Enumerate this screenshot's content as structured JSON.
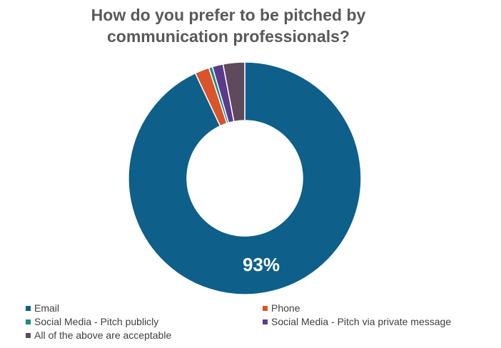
{
  "chart_data": {
    "type": "pie",
    "donut": true,
    "title": "How do you prefer to be pitched by communication professionals?",
    "title_lines": [
      "How do you prefer to be pitched by",
      "communication professionals?"
    ],
    "legend_position": "bottom",
    "slices": [
      {
        "label": "Email",
        "value": 93,
        "color": "#0E5F8A"
      },
      {
        "label": "Phone",
        "value": 2,
        "color": "#D9542B"
      },
      {
        "label": "Social Media - Pitch publicly",
        "value": 0.5,
        "color": "#1C8A7E"
      },
      {
        "label": "Social Media - Pitch via private message",
        "value": 1.5,
        "color": "#5B3A8C"
      },
      {
        "label": "All of the above are acceptable",
        "value": 3,
        "color": "#5E4A5C"
      }
    ],
    "data_labels": [
      {
        "slice": "Email",
        "text": "93%"
      }
    ]
  }
}
